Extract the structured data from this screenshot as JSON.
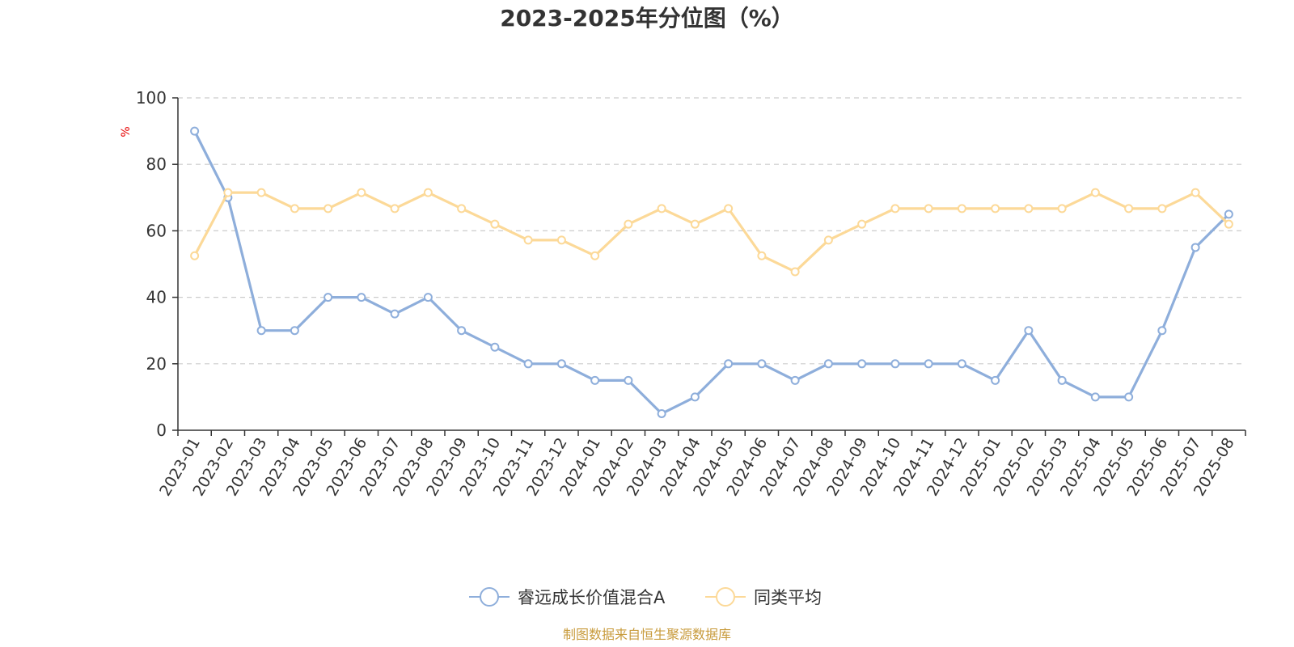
{
  "chart_data": {
    "type": "line",
    "title": "2023-2025年分位图（%）",
    "y_unit": "%",
    "ylim": [
      0,
      100
    ],
    "yticks": [
      0,
      20,
      40,
      60,
      80,
      100
    ],
    "grid": "horizontal-dashed",
    "legend_position": "bottom-center",
    "categories": [
      "2023-01",
      "2023-02",
      "2023-03",
      "2023-04",
      "2023-05",
      "2023-06",
      "2023-07",
      "2023-08",
      "2023-09",
      "2023-10",
      "2023-11",
      "2023-12",
      "2024-01",
      "2024-02",
      "2024-03",
      "2024-04",
      "2024-05",
      "2024-06",
      "2024-07",
      "2024-08",
      "2024-09",
      "2024-10",
      "2024-11",
      "2024-12",
      "2025-01",
      "2025-02",
      "2025-03",
      "2025-04",
      "2025-05",
      "2025-06",
      "2025-07",
      "2025-08"
    ],
    "series": [
      {
        "name": "睿远成长价值混合A",
        "color": "#8eaedb",
        "values": [
          90,
          70,
          30,
          30,
          40,
          40,
          35,
          40,
          30,
          25,
          20,
          20,
          15,
          15,
          5,
          10,
          20,
          20,
          15,
          20,
          20,
          20,
          20,
          20,
          15,
          30,
          15,
          10,
          10,
          30,
          55,
          65
        ]
      },
      {
        "name": "同类平均",
        "color": "#fcd998",
        "values": [
          52.5,
          71.5,
          71.5,
          66.7,
          66.7,
          71.5,
          66.7,
          71.5,
          66.7,
          62,
          57.2,
          57.2,
          52.5,
          62,
          66.7,
          62,
          66.7,
          52.5,
          47.7,
          57.2,
          62,
          66.7,
          66.7,
          66.7,
          66.7,
          66.7,
          66.7,
          71.5,
          66.7,
          66.7,
          71.5,
          62
        ]
      }
    ]
  },
  "footer": {
    "source": "制图数据来自恒生聚源数据库"
  }
}
